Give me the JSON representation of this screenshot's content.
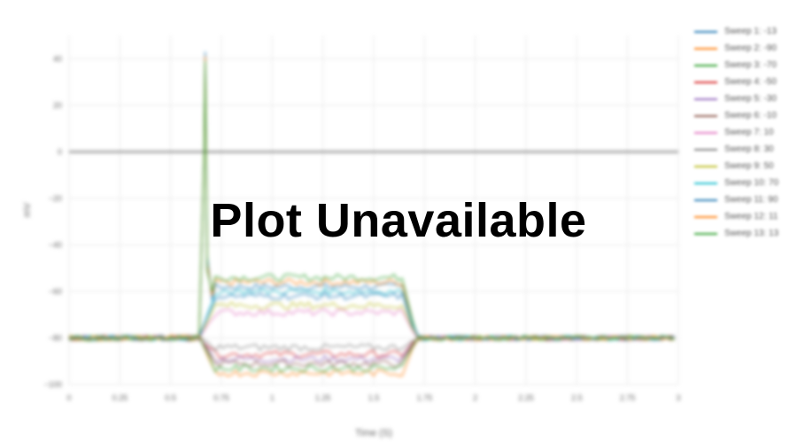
{
  "chart_data": {
    "type": "line",
    "xlabel": "Time (S)",
    "ylabel": "mV",
    "xlim": [
      0,
      3
    ],
    "ylim": [
      -100,
      50
    ],
    "xticks": [
      0,
      0.25,
      0.5,
      0.75,
      1,
      1.25,
      1.5,
      1.75,
      2,
      2.25,
      2.5,
      2.75,
      3
    ],
    "xtick_labels": [
      "0",
      "0.25",
      "0.5",
      "0.75",
      "1",
      "1.25",
      "1.5",
      "1.75",
      "2",
      "2.25",
      "2.5",
      "2.75",
      "3"
    ],
    "yticks": [
      40,
      20,
      0,
      -20,
      -40,
      -60,
      -80,
      -100
    ],
    "ytick_labels": [
      "40",
      "20",
      "0",
      "−20",
      "−40",
      "−60",
      "−80",
      "−100"
    ],
    "grid": true,
    "legend_position": "right",
    "stimulus": {
      "onset": 0.66,
      "offset": 1.66,
      "baseline": -80,
      "spike_peak": 43
    },
    "series": [
      {
        "name": "Sweep 1: -13",
        "color": "#1f77b4",
        "plateau": -58
      },
      {
        "name": "Sweep 2: -90",
        "color": "#ff7f0e",
        "plateau": -56
      },
      {
        "name": "Sweep 3: -70",
        "color": "#2ca02c",
        "plateau": -54
      },
      {
        "name": "Sweep 4: -50",
        "color": "#d62728",
        "plateau": -87
      },
      {
        "name": "Sweep 5: -30",
        "color": "#9467bd",
        "plateau": -89
      },
      {
        "name": "Sweep 6: -10",
        "color": "#8c564b",
        "plateau": -91
      },
      {
        "name": "Sweep 7: 10",
        "color": "#e377c2",
        "plateau": -69
      },
      {
        "name": "Sweep 8: 30",
        "color": "#7f7f7f",
        "plateau": -84
      },
      {
        "name": "Sweep 9: 50",
        "color": "#bcbd22",
        "plateau": -66
      },
      {
        "name": "Sweep 10: 70",
        "color": "#17becf",
        "plateau": -60
      },
      {
        "name": "Sweep 11: 90",
        "color": "#1f77b4",
        "plateau": -62
      },
      {
        "name": "Sweep 12: 11",
        "color": "#ff7f0e",
        "plateau": -95
      },
      {
        "name": "Sweep 13: 13",
        "color": "#2ca02c",
        "plateau": -93
      }
    ]
  },
  "overlay_text": "Plot Unavailable"
}
